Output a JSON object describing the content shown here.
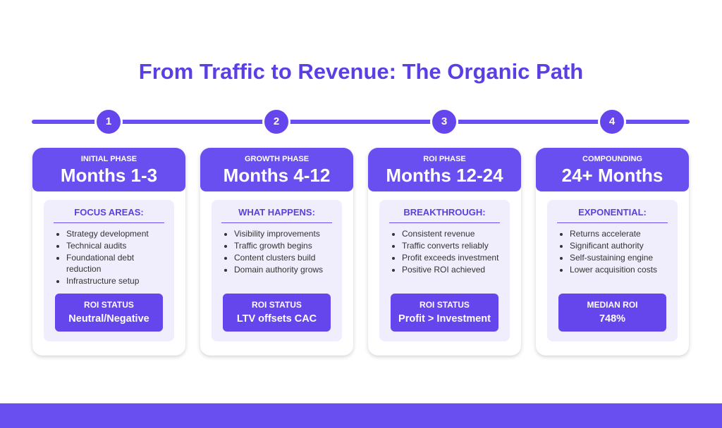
{
  "title": "From Traffic to Revenue: The Organic Path",
  "phases": [
    {
      "step": "1",
      "phase": "INITIAL PHASE",
      "months": "Months 1-3",
      "section": "FOCUS AREAS:",
      "items": [
        "Strategy development",
        "Technical audits",
        "Foundational debt reduction",
        "Infrastructure setup"
      ],
      "status_label": "ROI STATUS",
      "status_value": "Neutral/Negative"
    },
    {
      "step": "2",
      "phase": "GROWTH PHASE",
      "months": "Months 4-12",
      "section": "WHAT HAPPENS:",
      "items": [
        "Visibility improvements",
        "Traffic growth begins",
        "Content clusters build",
        "Domain authority grows"
      ],
      "status_label": "ROI STATUS",
      "status_value": "LTV offsets CAC"
    },
    {
      "step": "3",
      "phase": "ROI PHASE",
      "months": "Months 12-24",
      "section": "BREAKTHROUGH:",
      "items": [
        "Consistent revenue",
        "Traffic converts reliably",
        "Profit exceeds investment",
        "Positive ROI achieved"
      ],
      "status_label": "ROI STATUS",
      "status_value": "Profit > Investment"
    },
    {
      "step": "4",
      "phase": "COMPOUNDING",
      "months": "24+ Months",
      "section": "EXPONENTIAL:",
      "items": [
        "Returns accelerate",
        "Significant authority",
        "Self-sustaining engine",
        "Lower acquisition costs"
      ],
      "status_label": "MEDIAN ROI",
      "status_value": "748%"
    }
  ]
}
